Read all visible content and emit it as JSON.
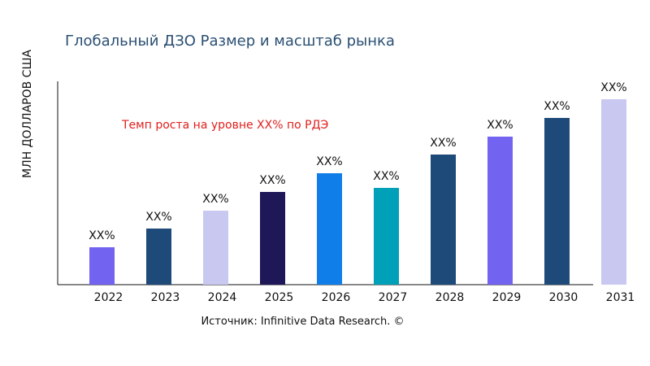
{
  "chart_data": {
    "type": "bar",
    "title": "Глобальный ДЗО Размер и масштаб рынка",
    "ylabel": "МЛН ДОЛЛАРОВ США",
    "xlabel": "",
    "annotation": "Темп роста на уровне XX% по РДЭ",
    "source": "Источник: Infinitive Data Research. ©",
    "categories": [
      "2022",
      "2023",
      "2024",
      "2025",
      "2026",
      "2027",
      "2028",
      "2029",
      "2030",
      "2031"
    ],
    "values": [
      46,
      69,
      91,
      114,
      137,
      119,
      160,
      182,
      205,
      228
    ],
    "data_labels": [
      "XX%",
      "XX%",
      "XX%",
      "XX%",
      "XX%",
      "XX%",
      "XX%",
      "XX%",
      "XX%",
      "XX%"
    ],
    "colors": [
      "#7263f0",
      "#1e4a7a",
      "#c8c8f0",
      "#1e1858",
      "#0f7ee8",
      "#00a0b8",
      "#1e4a7a",
      "#7263f0",
      "#1e4a7a",
      "#c8c8f0"
    ],
    "ylim": [
      0,
      250
    ],
    "grid": false,
    "legend": "none"
  }
}
